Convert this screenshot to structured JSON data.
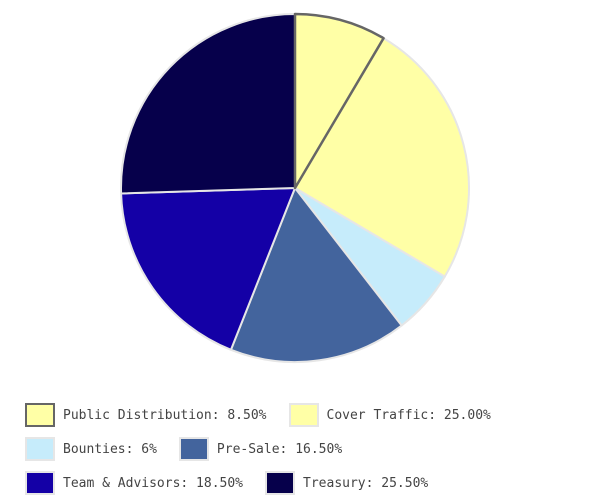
{
  "chart_data": {
    "type": "pie",
    "title": "",
    "slices": [
      {
        "label": "Public Distribution",
        "value": 8.5,
        "display": "Public Distribution: 8.50%",
        "color": "#ffffa6",
        "stroke": "#666666"
      },
      {
        "label": "Cover Traffic",
        "value": 25.0,
        "display": "Cover Traffic: 25.00%",
        "color": "#ffffa6",
        "stroke": "#e6e6e6"
      },
      {
        "label": "Bounties",
        "value": 6.0,
        "display": "Bounties: 6%",
        "color": "#c6ecfb",
        "stroke": "#e6e6e6"
      },
      {
        "label": "Pre-Sale",
        "value": 16.5,
        "display": "Pre-Sale: 16.50%",
        "color": "#43649d",
        "stroke": "#e6e6e6"
      },
      {
        "label": "Team & Advisors",
        "value": 18.5,
        "display": "Team & Advisors: 18.50%",
        "color": "#1400a6",
        "stroke": "#e6e6e6"
      },
      {
        "label": "Treasury",
        "value": 25.5,
        "display": "Treasury: 25.50%",
        "color": "#06004b",
        "stroke": "#e6e6e6"
      }
    ],
    "legend_position": "bottom"
  }
}
